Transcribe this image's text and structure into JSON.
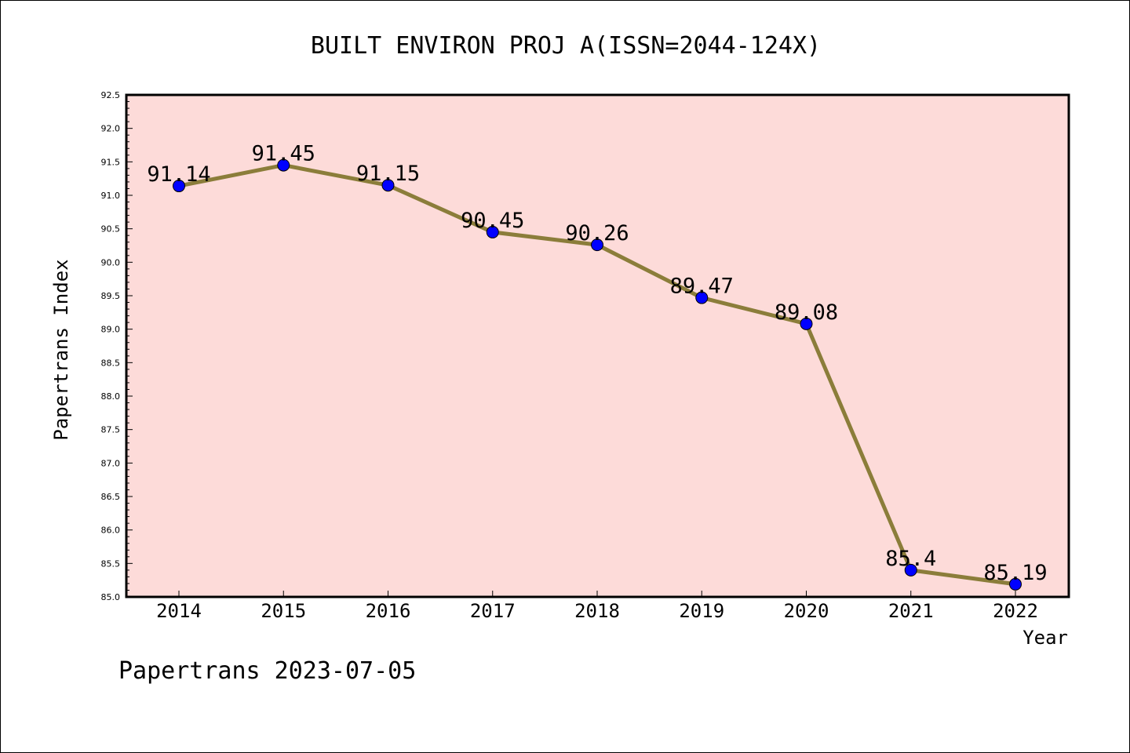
{
  "chart_data": {
    "type": "line",
    "title": "BUILT ENVIRON PROJ A(ISSN=2044-124X)",
    "xlabel": "Year",
    "ylabel": "Papertrans Index",
    "x": [
      "2014",
      "2015",
      "2016",
      "2017",
      "2018",
      "2019",
      "2020",
      "2021",
      "2022"
    ],
    "series": [
      {
        "values": [
          91.14,
          91.45,
          91.15,
          90.45,
          90.26,
          89.47,
          89.08,
          85.4,
          85.19
        ],
        "labels": [
          "91.14",
          "91.45",
          "91.15",
          "90.45",
          "90.26",
          "89.47",
          "89.08",
          "85.4",
          "85.19"
        ]
      }
    ],
    "ylim": [
      85.0,
      92.5
    ],
    "yticks": [
      "85.0",
      "85.5",
      "86.0",
      "86.5",
      "87.0",
      "87.5",
      "88.0",
      "88.5",
      "89.0",
      "89.5",
      "90.0",
      "90.5",
      "91.0",
      "91.5",
      "92.0",
      "92.5"
    ],
    "grid": false,
    "colors": {
      "plot_background": "#fddbd9",
      "line": "#8b7d3a",
      "marker": "#0000ff"
    }
  },
  "footer": "Papertrans 2023-07-05"
}
